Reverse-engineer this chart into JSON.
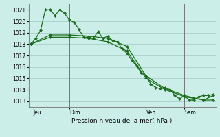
{
  "title": "Pression niveau de la mer( hPa )",
  "bg_color": "#cceee8",
  "grid_color": "#aad4ce",
  "line_color": "#1a6b1a",
  "marker_color": "#1a6b1a",
  "ylim": [
    1012.5,
    1021.5
  ],
  "yticks": [
    1013,
    1014,
    1015,
    1016,
    1017,
    1018,
    1019,
    1020,
    1021
  ],
  "day_labels": [
    "Jeu",
    "Dim",
    "Ven",
    "Sam"
  ],
  "day_positions": [
    0.5,
    8,
    24,
    32
  ],
  "vline_positions": [
    8,
    24,
    32
  ],
  "series1_x": [
    0,
    1,
    2,
    3,
    4,
    5,
    6,
    7,
    8,
    9,
    10,
    11,
    12,
    13,
    14,
    15,
    16,
    17,
    18,
    19,
    20,
    21,
    22,
    23,
    24,
    25,
    26,
    27,
    28,
    29,
    30,
    31,
    32,
    33,
    34,
    35,
    36,
    37,
    38
  ],
  "series1": [
    1018.0,
    1018.5,
    1019.2,
    1021.0,
    1021.0,
    1020.5,
    1021.0,
    1020.7,
    1020.1,
    1019.9,
    1019.3,
    1018.6,
    1018.6,
    1018.5,
    1019.1,
    1018.5,
    1018.7,
    1018.3,
    1018.2,
    1017.6,
    1017.2,
    1016.6,
    1016.1,
    1015.5,
    1015.2,
    1014.5,
    1014.2,
    1014.1,
    1014.2,
    1014.0,
    1013.5,
    1013.2,
    1013.5,
    1013.1,
    1013.1,
    1013.4,
    1013.5,
    1013.5,
    1013.6
  ],
  "series2_x": [
    0,
    4,
    8,
    12,
    16,
    20,
    24,
    28,
    32,
    36,
    38
  ],
  "series2": [
    1018.0,
    1018.8,
    1018.8,
    1018.7,
    1018.5,
    1017.8,
    1015.2,
    1014.1,
    1013.5,
    1013.1,
    1013.5
  ],
  "series3_x": [
    0,
    4,
    8,
    12,
    16,
    20,
    24,
    28,
    32,
    36,
    38
  ],
  "series3": [
    1018.0,
    1018.6,
    1018.6,
    1018.5,
    1018.2,
    1017.4,
    1015.0,
    1014.0,
    1013.4,
    1013.1,
    1013.1
  ],
  "n_points": 39,
  "xlim": [
    -0.5,
    38.5
  ]
}
